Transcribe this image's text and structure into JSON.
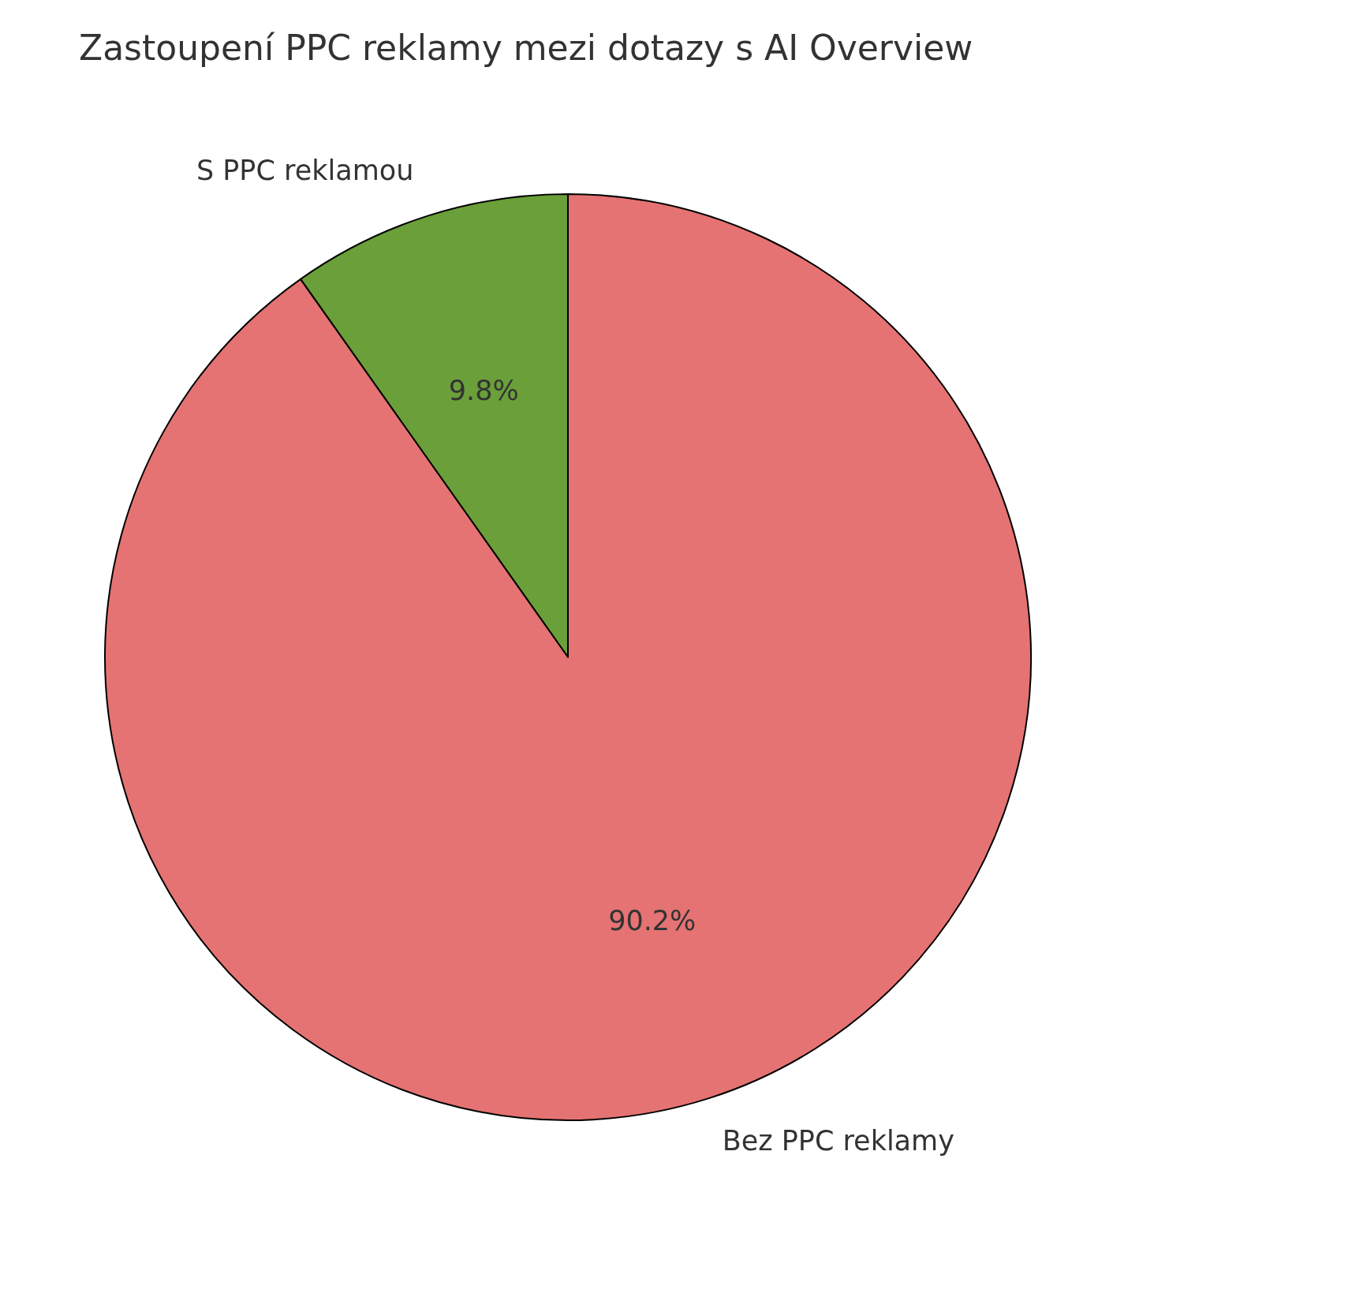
{
  "chart_data": {
    "type": "pie",
    "title": "Zastoupení PPC reklamy mezi dotazy s AI Overview",
    "categories": [
      "S PPC reklamou",
      "Bez PPC reklamy"
    ],
    "values": [
      9.8,
      90.2
    ],
    "colors": [
      "#6a9f3a",
      "#e57373"
    ],
    "value_labels": [
      "9.8%",
      "90.2%"
    ]
  }
}
